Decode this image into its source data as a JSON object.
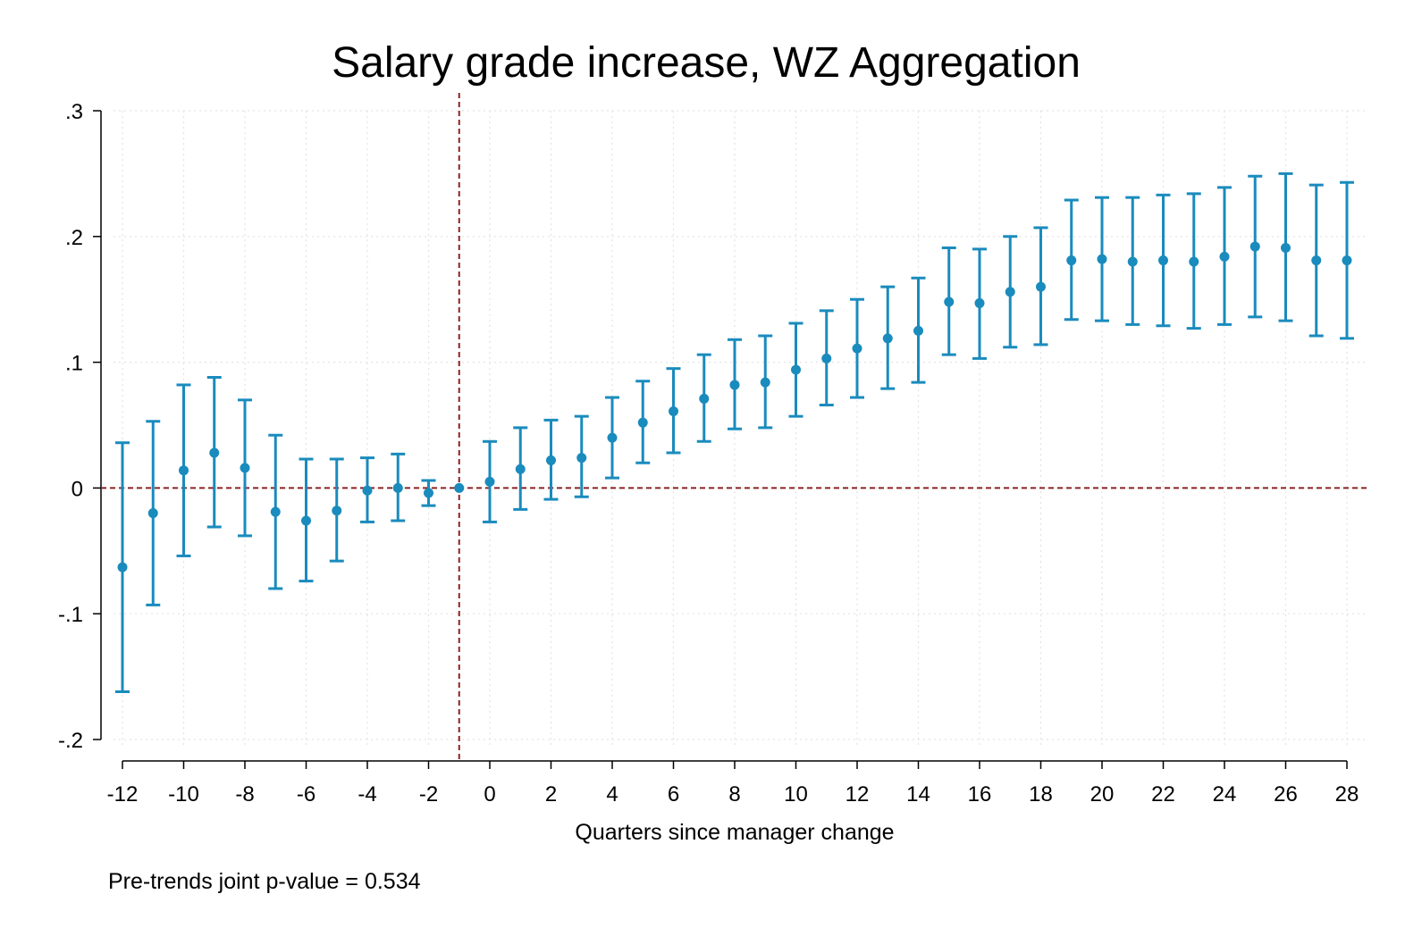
{
  "chart_data": {
    "type": "scatter",
    "title": "Salary grade increase, WZ Aggregation",
    "xlabel": "Quarters since manager change",
    "ylabel": "",
    "note": "Pre-trends joint p-value = 0.534",
    "xlim": [
      -12,
      28
    ],
    "ylim": [
      -0.2,
      0.3
    ],
    "x_ticks": [
      -12,
      -10,
      -8,
      -6,
      -4,
      -2,
      0,
      2,
      4,
      6,
      8,
      10,
      12,
      14,
      16,
      18,
      20,
      22,
      24,
      26,
      28
    ],
    "x_tick_labels": [
      "-12",
      "-10",
      "-8",
      "-6",
      "-4",
      "-2",
      "0",
      "2",
      "4",
      "6",
      "8",
      "10",
      "12",
      "14",
      "16",
      "18",
      "20",
      "22",
      "24",
      "26",
      "28"
    ],
    "y_ticks": [
      -0.2,
      -0.1,
      0,
      0.1,
      0.2,
      0.3
    ],
    "y_tick_labels": [
      "-.2",
      "-.1",
      "0",
      ".1",
      ".2",
      ".3"
    ],
    "grid": true,
    "reference_lines": {
      "x": -1,
      "y": 0,
      "color": "#8b2323"
    },
    "series": [
      {
        "color": "#1a8bbd",
        "x": [
          -12,
          -11,
          -10,
          -9,
          -8,
          -7,
          -6,
          -5,
          -4,
          -3,
          -2,
          -1,
          0,
          1,
          2,
          3,
          4,
          5,
          6,
          7,
          8,
          9,
          10,
          11,
          12,
          13,
          14,
          15,
          16,
          17,
          18,
          19,
          20,
          21,
          22,
          23,
          24,
          25,
          26,
          27,
          28
        ],
        "y": [
          -0.063,
          -0.02,
          0.014,
          0.028,
          0.016,
          -0.019,
          -0.026,
          -0.018,
          -0.002,
          0.0,
          -0.004,
          0.0,
          0.005,
          0.015,
          0.022,
          0.024,
          0.04,
          0.052,
          0.061,
          0.071,
          0.082,
          0.084,
          0.094,
          0.103,
          0.111,
          0.119,
          0.125,
          0.148,
          0.147,
          0.156,
          0.16,
          0.181,
          0.182,
          0.18,
          0.181,
          0.18,
          0.184,
          0.192,
          0.191,
          0.181,
          0.181
        ],
        "ci_low": [
          -0.162,
          -0.093,
          -0.054,
          -0.031,
          -0.038,
          -0.08,
          -0.074,
          -0.058,
          -0.027,
          -0.026,
          -0.014,
          0.0,
          -0.027,
          -0.017,
          -0.009,
          -0.007,
          0.008,
          0.02,
          0.028,
          0.037,
          0.047,
          0.048,
          0.057,
          0.066,
          0.072,
          0.079,
          0.084,
          0.106,
          0.103,
          0.112,
          0.114,
          0.134,
          0.133,
          0.13,
          0.129,
          0.127,
          0.13,
          0.136,
          0.133,
          0.121,
          0.119
        ],
        "ci_high": [
          0.036,
          0.053,
          0.082,
          0.088,
          0.07,
          0.042,
          0.023,
          0.023,
          0.024,
          0.027,
          0.006,
          0.0,
          0.037,
          0.048,
          0.054,
          0.057,
          0.072,
          0.085,
          0.095,
          0.106,
          0.118,
          0.121,
          0.131,
          0.141,
          0.15,
          0.16,
          0.167,
          0.191,
          0.19,
          0.2,
          0.207,
          0.229,
          0.231,
          0.231,
          0.233,
          0.234,
          0.239,
          0.248,
          0.25,
          0.241,
          0.243
        ]
      }
    ]
  }
}
